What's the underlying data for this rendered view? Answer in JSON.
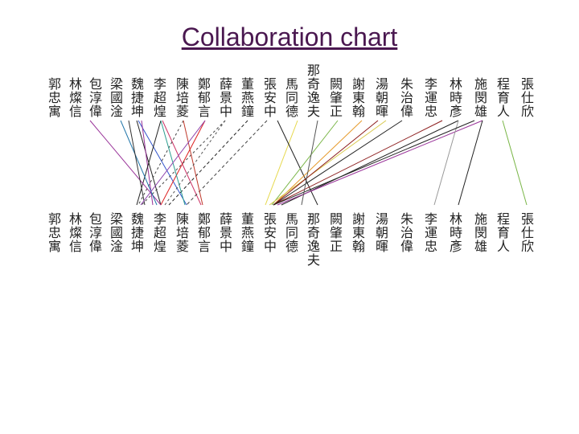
{
  "header": {
    "title": "Collaboration chart"
  },
  "top_row": {
    "names": [
      "郭忠寓",
      "林燦信",
      "包淳偉",
      "梁國淦",
      "魏捷坤",
      "李超煌",
      "陳培菱",
      "鄭郁言",
      "薛景中",
      "董燕鐘",
      "張安中",
      "馬同德",
      "那奇逸夫",
      "闕肇正",
      "謝東翰",
      "湯朝暉",
      "朱治偉",
      "李運忠",
      "林時彥",
      "施閔雄",
      "程育人",
      "張仕欣"
    ]
  },
  "bottom_row": {
    "names": [
      "郭忠寓",
      "林燦信",
      "包淳偉",
      "梁國淦",
      "魏捷坤",
      "李超煌",
      "陳培菱",
      "鄭郁言",
      "薛景中",
      "董燕鐘",
      "張安中",
      "馬同德",
      "那奇逸夫",
      "闕肇正",
      "謝東翰",
      "湯朝暉",
      "朱治偉",
      "李運忠",
      "林時彥",
      "施閔雄",
      "程育人",
      "張仕欣"
    ]
  }
}
